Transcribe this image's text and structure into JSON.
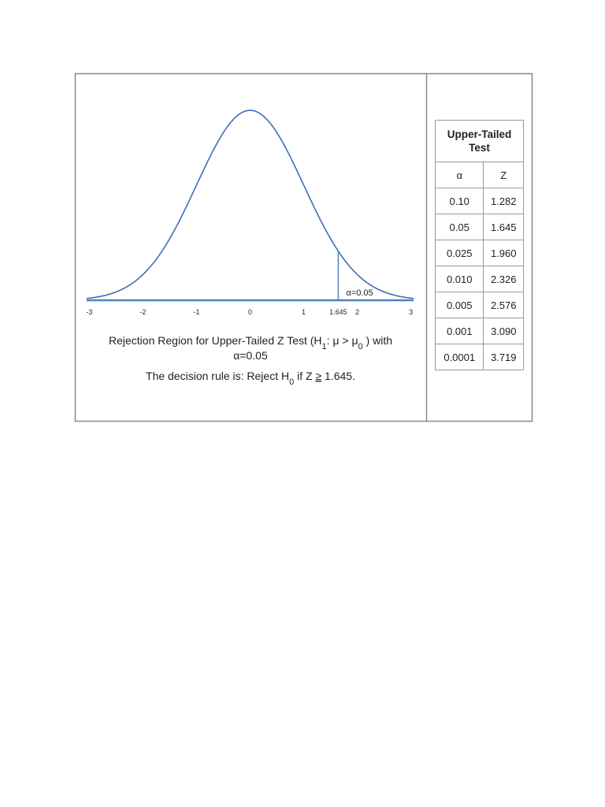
{
  "chart_data": {
    "type": "normal-curve",
    "xlim": [
      -3.05,
      3.05
    ],
    "xticks": [
      -3,
      -2,
      -1,
      0,
      1,
      1.645,
      2,
      3
    ],
    "critical_value": 1.645,
    "annotation": "α=0.05",
    "color": "#3b6fb6",
    "caption": [
      [
        {
          "text": "Rejection Region for Upper-Tailed Z Test (H"
        },
        {
          "text": "1",
          "sub": true
        },
        {
          "text": ": μ > μ"
        },
        {
          "text": "0",
          "sub": true
        },
        {
          "text": " ) with"
        }
      ],
      [
        {
          "text": "α=0.05"
        }
      ],
      [
        {
          "text": "The decision rule is: Reject H"
        },
        {
          "text": "0",
          "sub": true
        },
        {
          "text": " if Z "
        },
        {
          "text": "≥",
          "underline": true
        },
        {
          "text": " 1.645."
        }
      ]
    ]
  },
  "table": {
    "title": "Upper-Tailed Test",
    "header": [
      "α",
      "Z"
    ],
    "rows": [
      [
        "0.10",
        "1.282"
      ],
      [
        "0.05",
        "1.645"
      ],
      [
        "0.025",
        "1.960"
      ],
      [
        "0.010",
        "2.326"
      ],
      [
        "0.005",
        "2.576"
      ],
      [
        "0.001",
        "3.090"
      ],
      [
        "0.0001",
        "3.719"
      ]
    ]
  }
}
